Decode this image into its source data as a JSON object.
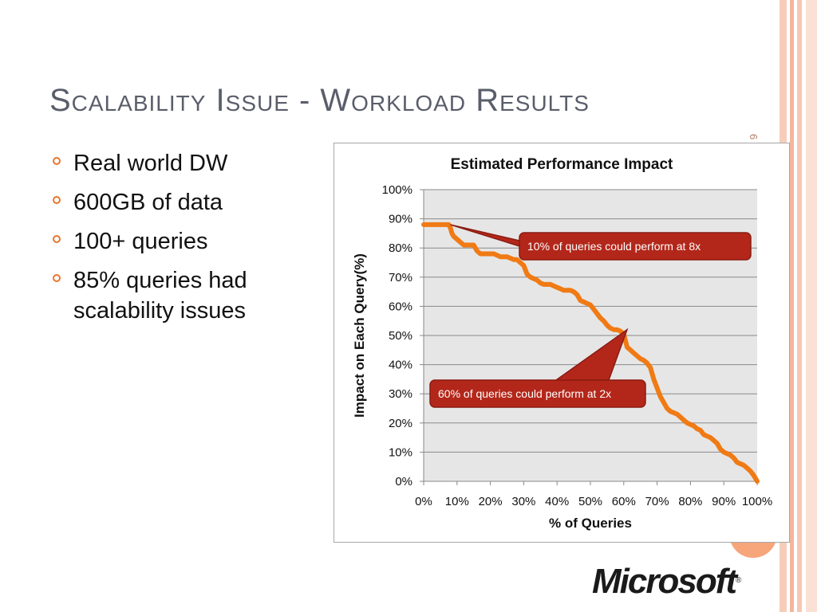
{
  "slide": {
    "title": "Scalability Issue - Workload Results",
    "slide_number": "6",
    "bullets": [
      "Real world DW",
      "600GB of data",
      "100+ queries",
      "85% queries had scalability issues"
    ],
    "logo_text": "Microsoft",
    "logo_mark": "®"
  },
  "colors": {
    "title": "#5a5e6b",
    "bullet": "#e8762d",
    "series_line": "#f07a14",
    "callout_fill": "#b3271a",
    "plot_background": "#e6e6e6",
    "stripes": "#f6c7b3"
  },
  "chart_data": {
    "type": "line",
    "title": "Estimated Performance Impact",
    "xlabel": "% of Queries",
    "ylabel": "Impact on Each Query(%)",
    "xlim": [
      0,
      100
    ],
    "ylim": [
      0,
      100
    ],
    "x_ticks": [
      "0%",
      "10%",
      "20%",
      "30%",
      "40%",
      "50%",
      "60%",
      "70%",
      "80%",
      "90%",
      "100%"
    ],
    "y_ticks": [
      "0%",
      "10%",
      "20%",
      "30%",
      "40%",
      "50%",
      "60%",
      "70%",
      "80%",
      "90%",
      "100%"
    ],
    "grid": "horizontal",
    "legend": "none",
    "series": [
      {
        "x": [
          0,
          1,
          2,
          3,
          4,
          5,
          6,
          7,
          7.5,
          8,
          8.5,
          9,
          10,
          11,
          12,
          13,
          14,
          15,
          15.5,
          16,
          17,
          18,
          19,
          20,
          21,
          22,
          23,
          24,
          25,
          26,
          27,
          28,
          29,
          30,
          31,
          32,
          33,
          34,
          35,
          36,
          37,
          38,
          39,
          40,
          41,
          42,
          43,
          44,
          45,
          46,
          47,
          48,
          49,
          50,
          51,
          52,
          53,
          54,
          55,
          56,
          57,
          58,
          59,
          60,
          61,
          62,
          63,
          64,
          65,
          66,
          67,
          68,
          69,
          70,
          71,
          72,
          73,
          74,
          75,
          76,
          77,
          78,
          79,
          80,
          81,
          82,
          83,
          84,
          85,
          86,
          87,
          88,
          89,
          90,
          91,
          92,
          93,
          94,
          95,
          96,
          97,
          98,
          99,
          99.5,
          100
        ],
        "y": [
          88,
          88,
          88,
          88,
          88,
          88,
          88,
          88,
          88,
          87,
          85,
          84,
          83,
          82,
          81,
          81,
          81,
          81,
          80,
          79,
          78,
          78,
          78,
          78,
          78,
          77.5,
          77,
          77,
          77,
          76.5,
          76,
          76,
          75,
          74,
          71,
          70,
          69.5,
          69,
          68,
          67.5,
          67.5,
          67.5,
          67,
          66.5,
          66,
          65.5,
          65.5,
          65.5,
          65,
          64,
          62,
          61.5,
          61,
          60.5,
          59,
          57.5,
          56,
          55,
          53.5,
          52.5,
          52,
          52,
          51.5,
          50.5,
          46,
          45,
          44,
          43,
          42,
          41.5,
          40.5,
          39,
          35,
          32,
          29,
          27,
          25,
          24,
          23.5,
          23,
          22,
          21,
          20,
          19.5,
          19,
          18,
          17.5,
          16,
          15.5,
          15,
          14,
          13,
          11,
          10,
          9.5,
          9,
          8,
          6.5,
          6,
          5.5,
          4.5,
          3.5,
          2,
          1,
          0
        ]
      }
    ],
    "annotations": [
      {
        "text": "10% of queries  could perform at 8x",
        "point": [
          8,
          88
        ]
      },
      {
        "text": "60% of queries  could perform at 2x",
        "point": [
          61,
          52
        ]
      }
    ]
  }
}
